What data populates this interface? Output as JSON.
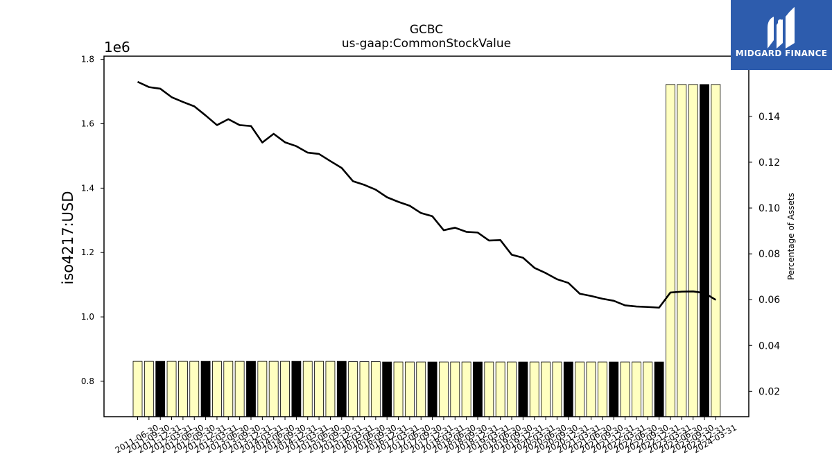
{
  "chart_data": {
    "type": "bar",
    "title": "GCBC",
    "subtitle": "us-gaap:CommonStockValue",
    "ylabel": "iso4217:USD",
    "y_offset_label": "1e6",
    "ylim": [
      690000,
      1810000
    ],
    "yticks": [
      0.8,
      1.0,
      1.2,
      1.4,
      1.6,
      1.8
    ],
    "y2label": "Percentage of Assets",
    "y2lim": [
      0.0089,
      0.1663
    ],
    "y2ticks": [
      0.02,
      0.04,
      0.06,
      0.08,
      0.1,
      0.12,
      0.14
    ],
    "categories": [
      "2011-06-30",
      "2011-09-30",
      "2011-12-31",
      "2012-03-31",
      "2012-06-30",
      "2012-09-30",
      "2012-12-31",
      "2013-03-31",
      "2013-06-30",
      "2013-09-30",
      "2013-12-31",
      "2014-03-31",
      "2014-06-30",
      "2014-09-30",
      "2014-12-31",
      "2015-03-31",
      "2015-06-30",
      "2015-09-30",
      "2015-12-31",
      "2016-03-31",
      "2016-06-30",
      "2016-09-30",
      "2016-12-31",
      "2017-03-31",
      "2017-06-30",
      "2017-09-30",
      "2017-12-31",
      "2018-03-31",
      "2018-06-30",
      "2018-09-30",
      "2018-12-31",
      "2019-03-31",
      "2019-06-30",
      "2019-09-30",
      "2019-12-31",
      "2020-03-31",
      "2020-06-30",
      "2020-09-30",
      "2020-12-31",
      "2021-03-31",
      "2021-06-30",
      "2021-09-30",
      "2021-12-31",
      "2022-03-31",
      "2022-06-30",
      "2022-09-30",
      "2022-12-31",
      "2023-03-31",
      "2023-06-30",
      "2023-09-30",
      "2023-12-31",
      "2024-03-31"
    ],
    "values": [
      862000,
      862000,
      862000,
      862000,
      862000,
      862000,
      862000,
      862000,
      862000,
      862000,
      862000,
      862000,
      862000,
      862000,
      862000,
      862000,
      862000,
      862000,
      862000,
      861000,
      861000,
      861000,
      860000,
      860000,
      860000,
      860000,
      860000,
      860000,
      860000,
      860000,
      860000,
      860000,
      860000,
      860000,
      860000,
      860000,
      860000,
      860000,
      860000,
      860000,
      860000,
      860000,
      860000,
      860000,
      860000,
      860000,
      860000,
      1722000,
      1722000,
      1722000,
      1722000,
      1722000
    ],
    "bar_colors": {
      "default": "#ffffc0",
      "highlight": "#000000",
      "edge": "#000000"
    },
    "highlighted_categories": [
      "2011-12-31",
      "2012-12-31",
      "2013-12-31",
      "2014-12-31",
      "2015-12-31",
      "2016-12-31",
      "2017-12-31",
      "2018-12-31",
      "2019-12-31",
      "2020-12-31",
      "2021-12-31",
      "2022-12-31",
      "2023-12-31"
    ],
    "series": [
      {
        "values": [
          0.1551,
          0.1528,
          0.1521,
          0.1484,
          0.1463,
          0.1444,
          0.1404,
          0.1362,
          0.1388,
          0.1362,
          0.1358,
          0.1286,
          0.1324,
          0.1287,
          0.127,
          0.1242,
          0.1236,
          0.1205,
          0.1175,
          0.1117,
          0.1101,
          0.108,
          0.1047,
          0.1027,
          0.101,
          0.0978,
          0.0964,
          0.0903,
          0.0914,
          0.0896,
          0.0893,
          0.0858,
          0.086,
          0.0796,
          0.0783,
          0.0739,
          0.0716,
          0.0689,
          0.0673,
          0.0626,
          0.0616,
          0.0604,
          0.0595,
          0.0575,
          0.057,
          0.0568,
          0.0565,
          0.0631,
          0.0635,
          0.0636,
          0.0629,
          0.0599
        ],
        "color": "#000000"
      }
    ]
  },
  "logo": {
    "text": "MIDGARD FINANCE",
    "background": "#2d5cad"
  }
}
